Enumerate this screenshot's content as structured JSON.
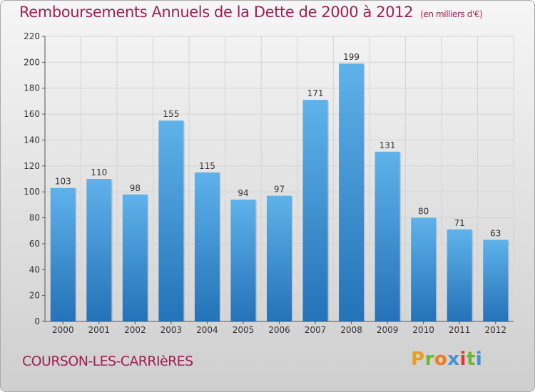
{
  "header": {
    "title": "Remboursements Annuels de la Dette de 2000 à 2012",
    "subtitle": "(en milliers d'€)"
  },
  "footer": {
    "city": "COURSON-LES-CARRIèRES",
    "logo_letters": [
      "P",
      "r",
      "o",
      "x",
      "i",
      "t",
      "i"
    ]
  },
  "colors": {
    "title": "#a0204f",
    "bar_top": "#5fb2ea",
    "bar_bottom": "#2472b8",
    "logo": [
      "#e8a020",
      "#6ab82e",
      "#f07b1f",
      "#4a8fd8",
      "#e0392b",
      "#6ab82e",
      "#4a8fd8"
    ]
  },
  "chart_data": {
    "type": "bar",
    "title": "Remboursements Annuels de la Dette de 2000 à 2012",
    "subtitle": "(en milliers d'€)",
    "xlabel": "",
    "ylabel": "",
    "categories": [
      "2000",
      "2001",
      "2002",
      "2003",
      "2004",
      "2005",
      "2006",
      "2007",
      "2008",
      "2009",
      "2010",
      "2011",
      "2012"
    ],
    "values": [
      103,
      110,
      98,
      155,
      115,
      94,
      97,
      171,
      199,
      131,
      80,
      71,
      63
    ],
    "ylim": [
      0,
      220
    ],
    "yticks": [
      0,
      20,
      40,
      60,
      80,
      100,
      120,
      140,
      160,
      180,
      200,
      220
    ],
    "grid": true,
    "legend": "none"
  }
}
